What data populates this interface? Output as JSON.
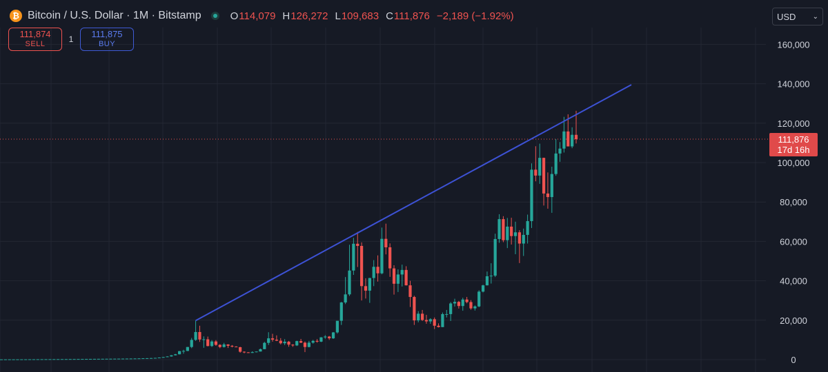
{
  "header": {
    "symbol_icon": "bitcoin-icon",
    "title": "Bitcoin / U.S. Dollar · 1M · Bitstamp",
    "ohlc": [
      {
        "key": "O",
        "value": "114,079"
      },
      {
        "key": "H",
        "value": "126,272"
      },
      {
        "key": "L",
        "value": "109,683"
      },
      {
        "key": "C",
        "value": "111,876"
      }
    ],
    "change": "−2,189 (−1.92%)"
  },
  "trade": {
    "sell_price": "111,874",
    "sell_label": "SELL",
    "quantity": "1",
    "buy_price": "111,875",
    "buy_label": "BUY"
  },
  "currency": "USD",
  "price_tag": {
    "price": "111,876",
    "countdown": "17d 16h"
  },
  "colors": {
    "background": "#161a25",
    "up": "#26a69a",
    "down": "#ef5350",
    "trendline": "#3d52d5",
    "grid": "#232733",
    "price_line": "#ef5350"
  },
  "chart_data": {
    "type": "candlestick",
    "frequency": "monthly",
    "ylim": [
      0,
      170000
    ],
    "y_ticks": [
      "160,000",
      "140,000",
      "120,000",
      "100,000",
      "80,000",
      "60,000",
      "40,000",
      "20,000",
      "0"
    ],
    "y_tick_values": [
      160000,
      140000,
      120000,
      100000,
      80000,
      60000,
      40000,
      20000,
      0
    ],
    "last_price": 111876,
    "ohlc": [
      [
        100,
        110,
        95,
        105
      ],
      [
        105,
        118,
        98,
        112
      ],
      [
        112,
        125,
        105,
        120
      ],
      [
        120,
        130,
        115,
        125
      ],
      [
        125,
        140,
        120,
        135
      ],
      [
        135,
        150,
        130,
        145
      ],
      [
        145,
        160,
        140,
        150
      ],
      [
        150,
        170,
        145,
        165
      ],
      [
        165,
        180,
        160,
        175
      ],
      [
        175,
        190,
        170,
        185
      ],
      [
        185,
        200,
        180,
        195
      ],
      [
        195,
        210,
        190,
        205
      ],
      [
        205,
        220,
        200,
        215
      ],
      [
        215,
        235,
        210,
        230
      ],
      [
        230,
        250,
        220,
        240
      ],
      [
        240,
        260,
        230,
        255
      ],
      [
        255,
        270,
        245,
        265
      ],
      [
        265,
        290,
        260,
        285
      ],
      [
        285,
        300,
        280,
        295
      ],
      [
        295,
        315,
        285,
        310
      ],
      [
        310,
        330,
        300,
        325
      ],
      [
        325,
        350,
        320,
        340
      ],
      [
        340,
        360,
        330,
        355
      ],
      [
        355,
        380,
        350,
        375
      ],
      [
        375,
        400,
        370,
        395
      ],
      [
        395,
        420,
        390,
        415
      ],
      [
        415,
        440,
        405,
        430
      ],
      [
        430,
        460,
        420,
        450
      ],
      [
        450,
        480,
        440,
        470
      ],
      [
        470,
        500,
        460,
        490
      ],
      [
        490,
        520,
        480,
        510
      ],
      [
        510,
        540,
        500,
        530
      ],
      [
        530,
        560,
        520,
        550
      ],
      [
        550,
        590,
        540,
        580
      ],
      [
        580,
        640,
        560,
        620
      ],
      [
        620,
        700,
        600,
        680
      ],
      [
        680,
        750,
        650,
        720
      ],
      [
        720,
        800,
        700,
        780
      ],
      [
        780,
        900,
        760,
        880
      ],
      [
        880,
        1100,
        850,
        1050
      ],
      [
        1050,
        1350,
        1000,
        1300
      ],
      [
        1300,
        1700,
        1250,
        1600
      ],
      [
        1600,
        2300,
        1500,
        2200
      ],
      [
        2200,
        2900,
        2100,
        2700
      ],
      [
        2700,
        4400,
        2600,
        4300
      ],
      [
        4300,
        5000,
        3000,
        4400
      ],
      [
        4400,
        6400,
        4300,
        6400
      ],
      [
        6400,
        11000,
        5800,
        10000
      ],
      [
        10000,
        19800,
        9500,
        14000
      ],
      [
        14000,
        17200,
        9000,
        10200
      ],
      [
        10200,
        11800,
        6000,
        10300
      ],
      [
        10300,
        11700,
        6700,
        6900
      ],
      [
        6900,
        9900,
        6400,
        9200
      ],
      [
        9200,
        9900,
        7000,
        7500
      ],
      [
        7500,
        7800,
        5800,
        6400
      ],
      [
        6400,
        8500,
        6100,
        7700
      ],
      [
        7700,
        7800,
        5900,
        7000
      ],
      [
        7000,
        7400,
        6200,
        6600
      ],
      [
        6600,
        6800,
        6300,
        6300
      ],
      [
        6300,
        6500,
        3500,
        4000
      ],
      [
        4000,
        4200,
        3200,
        3700
      ],
      [
        3700,
        3800,
        3300,
        3400
      ],
      [
        3400,
        4200,
        3400,
        3800
      ],
      [
        3800,
        4100,
        3700,
        4100
      ],
      [
        4100,
        5600,
        4100,
        5300
      ],
      [
        5300,
        9000,
        5300,
        8500
      ],
      [
        8500,
        13900,
        7400,
        10800
      ],
      [
        10800,
        13100,
        9100,
        10100
      ],
      [
        10100,
        12300,
        9400,
        9600
      ],
      [
        9600,
        10900,
        7700,
        8300
      ],
      [
        8300,
        10400,
        7400,
        9100
      ],
      [
        9100,
        9500,
        6500,
        7600
      ],
      [
        7600,
        7800,
        6500,
        7200
      ],
      [
        7200,
        9600,
        6900,
        9400
      ],
      [
        9400,
        10500,
        8400,
        8600
      ],
      [
        8600,
        9200,
        3800,
        6400
      ],
      [
        6400,
        9500,
        6200,
        8600
      ],
      [
        8600,
        10000,
        8100,
        9500
      ],
      [
        9500,
        10400,
        8600,
        9100
      ],
      [
        9100,
        11400,
        8900,
        11300
      ],
      [
        11300,
        12400,
        10600,
        11700
      ],
      [
        11700,
        12000,
        10000,
        10800
      ],
      [
        10800,
        14000,
        10500,
        13800
      ],
      [
        13800,
        19500,
        13200,
        19700
      ],
      [
        19700,
        29300,
        17600,
        29000
      ],
      [
        29000,
        41900,
        28200,
        33100
      ],
      [
        33100,
        58300,
        32300,
        45200
      ],
      [
        45200,
        61800,
        43000,
        58800
      ],
      [
        58800,
        64800,
        47000,
        57700
      ],
      [
        57700,
        59500,
        30000,
        37300
      ],
      [
        37300,
        41300,
        31000,
        35000
      ],
      [
        35000,
        41500,
        28800,
        41400
      ],
      [
        41400,
        50500,
        37300,
        47100
      ],
      [
        47100,
        52900,
        39600,
        43800
      ],
      [
        43800,
        67000,
        43300,
        61300
      ],
      [
        61300,
        69000,
        53400,
        57000
      ],
      [
        57000,
        59000,
        42000,
        46300
      ],
      [
        46300,
        47900,
        33000,
        38500
      ],
      [
        38500,
        45800,
        34300,
        43200
      ],
      [
        43200,
        48200,
        37100,
        45500
      ],
      [
        45500,
        47400,
        37600,
        37700
      ],
      [
        37700,
        40000,
        26700,
        31800
      ],
      [
        31800,
        32400,
        17600,
        19900
      ],
      [
        19900,
        24600,
        18900,
        23300
      ],
      [
        23300,
        25200,
        19600,
        20100
      ],
      [
        20100,
        22700,
        18200,
        19400
      ],
      [
        19400,
        21000,
        18200,
        20500
      ],
      [
        20500,
        21400,
        15500,
        17200
      ],
      [
        17200,
        18400,
        16300,
        16500
      ],
      [
        16500,
        23900,
        16500,
        23100
      ],
      [
        23100,
        25200,
        21400,
        23100
      ],
      [
        23100,
        29200,
        19600,
        28500
      ],
      [
        28500,
        30900,
        26900,
        29300
      ],
      [
        29300,
        29800,
        25900,
        27200
      ],
      [
        27200,
        31400,
        24800,
        30500
      ],
      [
        30500,
        31800,
        28600,
        29200
      ],
      [
        29200,
        30200,
        25300,
        26000
      ],
      [
        26000,
        27500,
        24900,
        27000
      ],
      [
        27000,
        35200,
        26600,
        34500
      ],
      [
        34500,
        38000,
        34100,
        37700
      ],
      [
        37700,
        44700,
        37600,
        42300
      ],
      [
        42300,
        48900,
        38600,
        42600
      ],
      [
        42600,
        63900,
        41900,
        61200
      ],
      [
        61200,
        73800,
        59300,
        71300
      ],
      [
        71300,
        72800,
        59600,
        60600
      ],
      [
        60600,
        71900,
        56600,
        67500
      ],
      [
        67500,
        72000,
        58400,
        62700
      ],
      [
        62700,
        70000,
        53500,
        64600
      ],
      [
        64600,
        65700,
        49000,
        58900
      ],
      [
        58900,
        66500,
        52600,
        63300
      ],
      [
        63300,
        73600,
        58900,
        70300
      ],
      [
        70300,
        99600,
        66800,
        96400
      ],
      [
        96400,
        108300,
        90500,
        93400
      ],
      [
        93400,
        109600,
        89200,
        102400
      ],
      [
        102400,
        102500,
        78200,
        84300
      ],
      [
        84300,
        95000,
        76600,
        82500
      ],
      [
        82500,
        97900,
        74500,
        94200
      ],
      [
        94200,
        111900,
        93300,
        104600
      ],
      [
        104600,
        110400,
        100400,
        107100
      ],
      [
        107100,
        123200,
        105100,
        115800
      ],
      [
        115800,
        124500,
        108700,
        108200
      ],
      [
        108200,
        117900,
        107300,
        114100
      ],
      [
        114079,
        126272,
        109683,
        111876
      ]
    ]
  }
}
